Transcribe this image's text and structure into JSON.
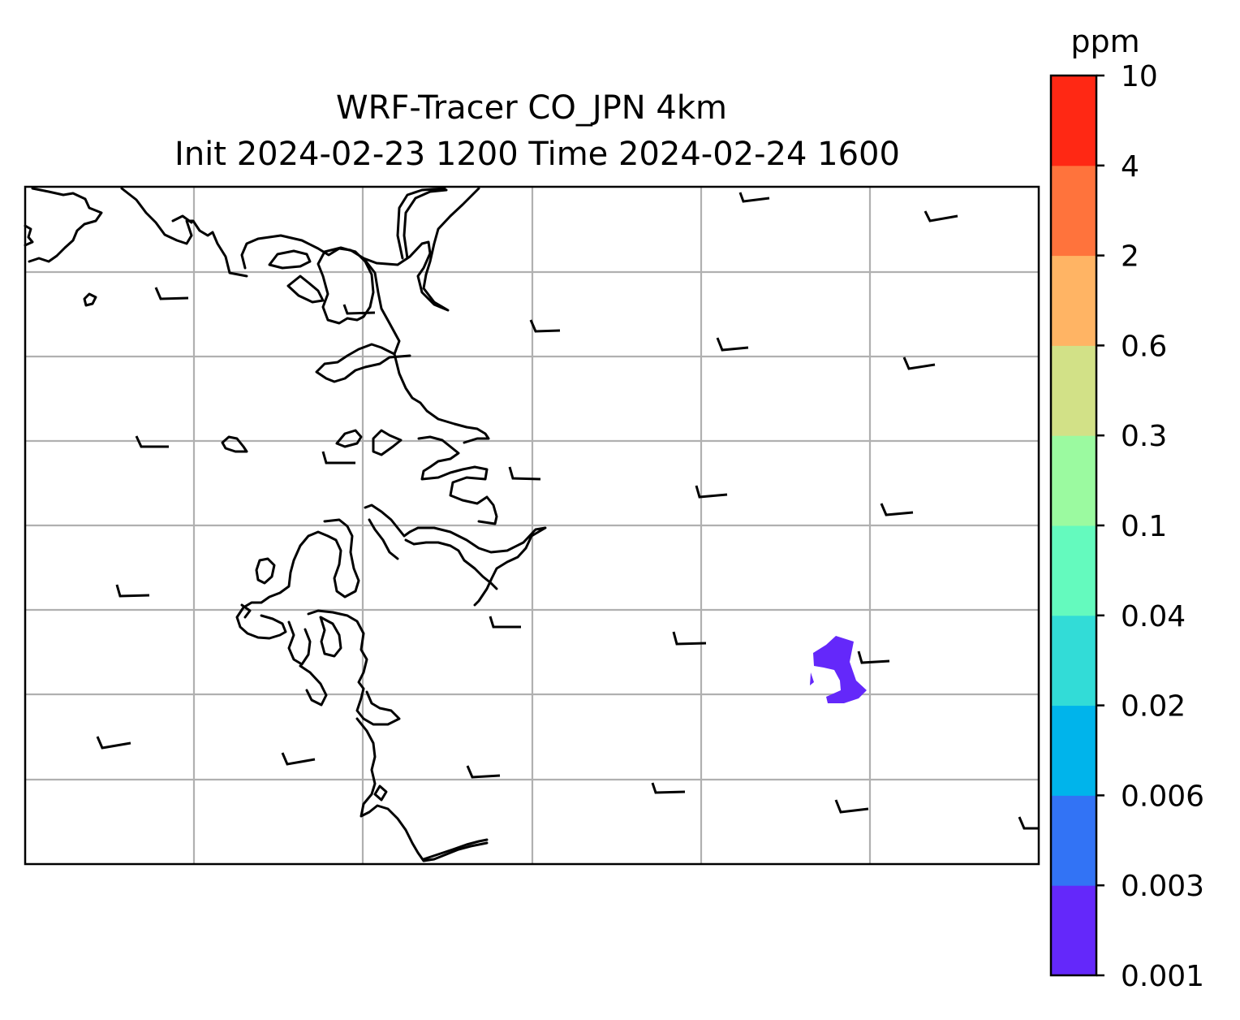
{
  "title": {
    "line1": "WRF-Tracer CO_JPN 4km",
    "line2": "Init 2024-02-23 1200 Time 2024-02-24 1600"
  },
  "colorbar": {
    "unit": "ppm",
    "levels": [
      "0.001",
      "0.003",
      "0.006",
      "0.02",
      "0.04",
      "0.1",
      "0.3",
      "0.6",
      "2",
      "4",
      "10"
    ],
    "colors": [
      "#6428fa",
      "#3273f5",
      "#00b4eb",
      "#32dcd7",
      "#64fabe",
      "#9bfaa0",
      "#d2e187",
      "#ffb464",
      "#ff733c",
      "#ff2814"
    ]
  },
  "map": {
    "gridlines": true,
    "coastline_color": "#000000",
    "plume": {
      "level_bin": "0.001–0.003",
      "color": "#6428fa"
    },
    "wind_barbs": {
      "count": 25,
      "color": "#000000"
    }
  }
}
